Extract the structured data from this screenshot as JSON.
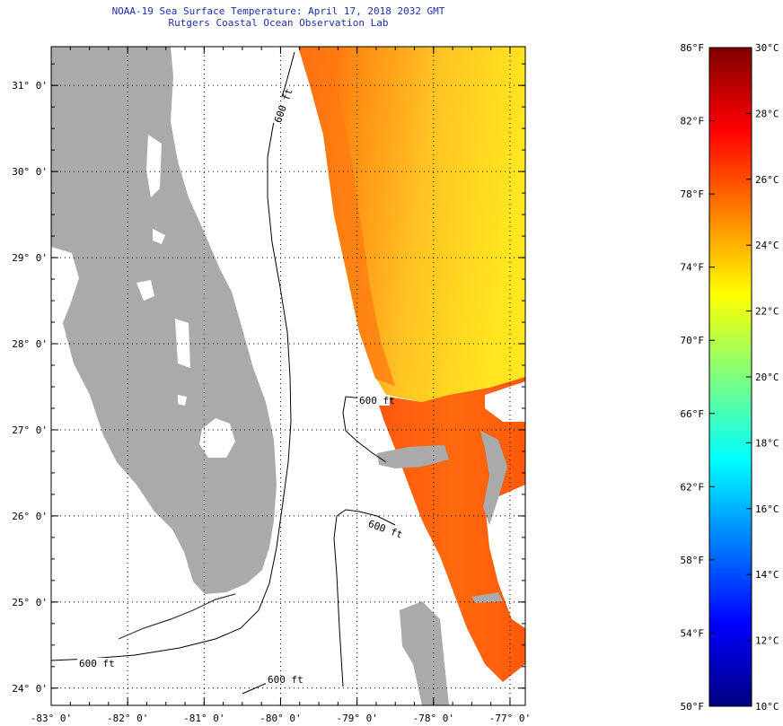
{
  "title": "NOAA-19 Sea Surface Temperature:  April 17, 2018 2032 GMT",
  "subtitle": "Rutgers Coastal Ocean Observation Lab",
  "map": {
    "lat_labels": [
      "31° 0'",
      "30° 0'",
      "29° 0'",
      "28° 0'",
      "27° 0'",
      "26° 0'",
      "25° 0'",
      "24° 0'"
    ],
    "lat_values": [
      31,
      30,
      29,
      28,
      27,
      26,
      25,
      24
    ],
    "lon_labels": [
      "-83° 0'",
      "-82° 0'",
      "-81° 0'",
      "-80° 0'",
      "-79° 0'",
      "-78° 0'",
      "-77° 0'"
    ],
    "lon_values": [
      -83,
      -82,
      -81,
      -80,
      -79,
      -78,
      -77
    ],
    "lon_range": [
      -83,
      -76.8
    ],
    "lat_range": [
      23.8,
      31.45
    ],
    "contour_label": "600 ft",
    "land_color": "#aaaaaa",
    "missing_color": "#ffffff"
  },
  "colorbar": {
    "f_labels": [
      "86°F",
      "82°F",
      "78°F",
      "74°F",
      "70°F",
      "66°F",
      "62°F",
      "58°F",
      "54°F",
      "50°F"
    ],
    "f_values": [
      86,
      82,
      78,
      74,
      70,
      66,
      62,
      58,
      54,
      50
    ],
    "c_labels": [
      "30°C",
      "28°C",
      "26°C",
      "24°C",
      "22°C",
      "20°C",
      "18°C",
      "16°C",
      "14°C",
      "12°C",
      "10°C"
    ],
    "c_values": [
      30,
      28,
      26,
      24,
      22,
      20,
      18,
      16,
      14,
      12,
      10
    ],
    "range_c": [
      10,
      30
    ],
    "colors": [
      "#00007f",
      "#0000ff",
      "#007fff",
      "#00ffff",
      "#7fff7f",
      "#ffff00",
      "#ff7f00",
      "#ff0000",
      "#7f0000"
    ]
  }
}
